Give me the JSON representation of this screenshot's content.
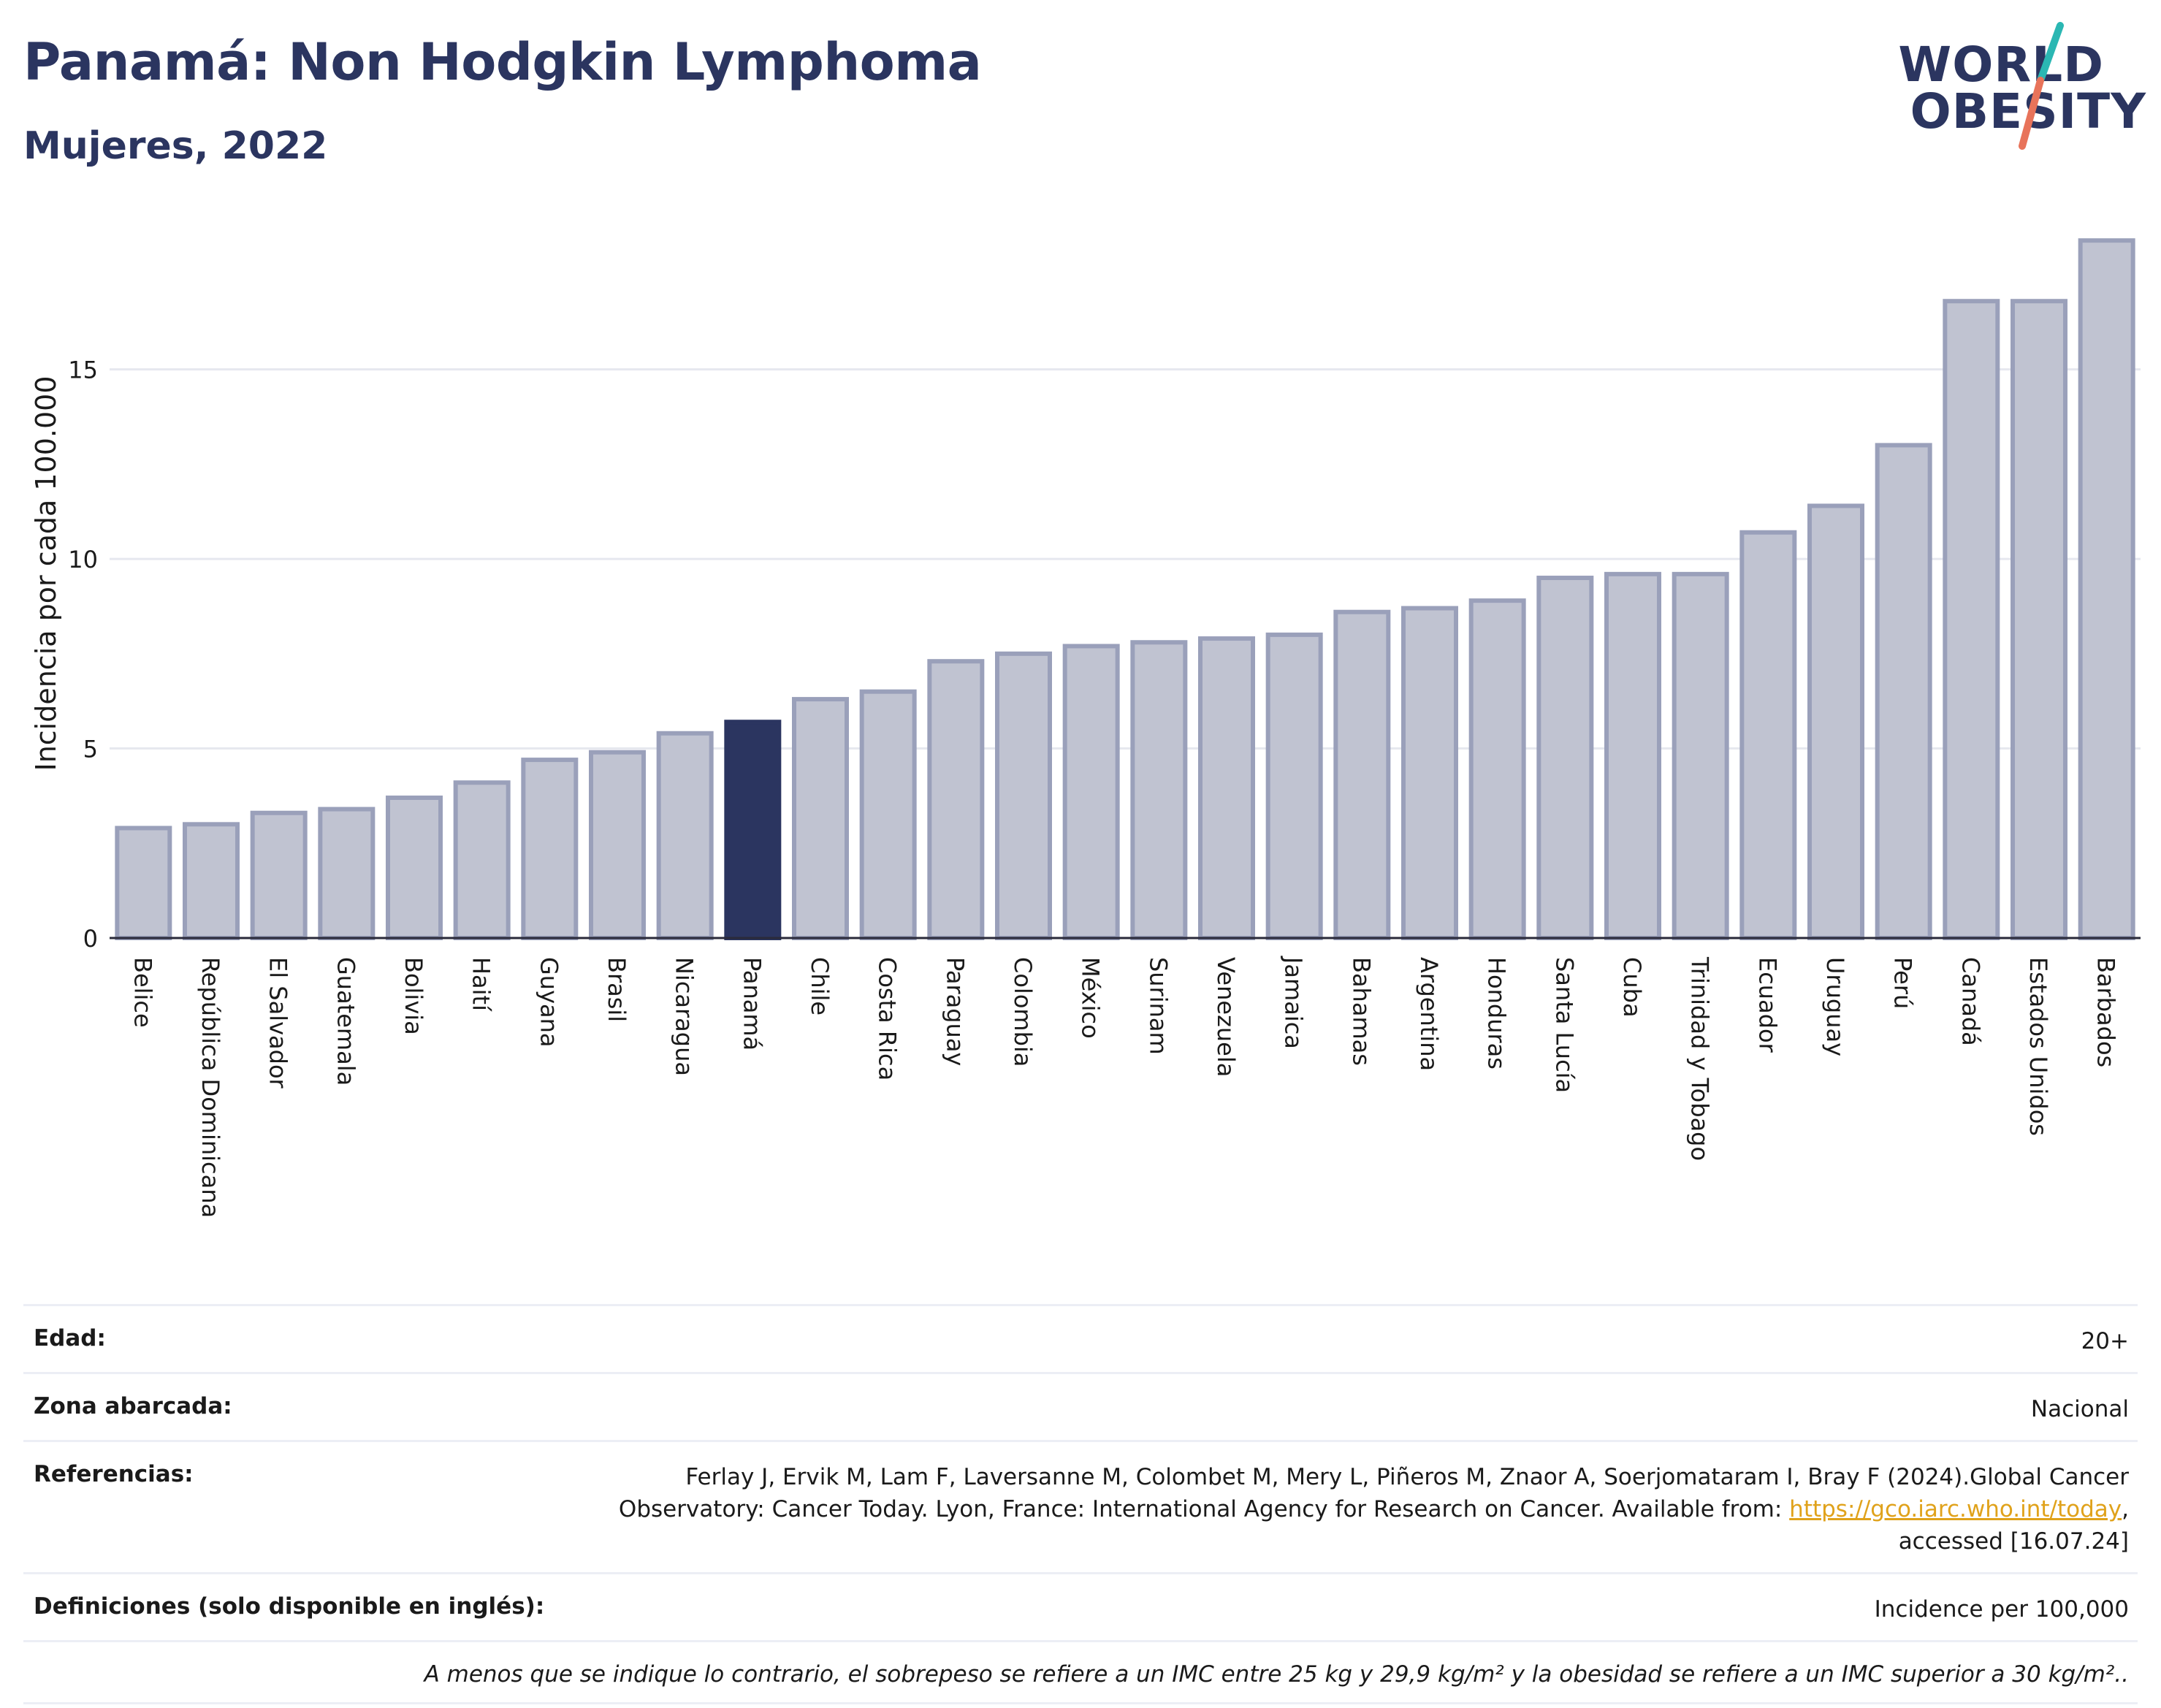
{
  "header": {
    "title": "Panamá: Non Hodgkin Lymphoma",
    "subtitle": "Mujeres, 2022"
  },
  "logo": {
    "line1": "WORLD",
    "line2": "OBESITY"
  },
  "colors": {
    "highlight": "#2b3560",
    "bar_fill": "#c0c3d1",
    "bar_stroke": "#9aa0ba",
    "grid": "#e6e8ef",
    "logo_teal": "#2bb7b3",
    "logo_red": "#e8735a"
  },
  "chart_data": {
    "type": "bar",
    "ylabel": "Incidencia por cada 100.000",
    "xlabel": "",
    "ylim": [
      0,
      18.5
    ],
    "yticks": [
      0,
      5,
      10,
      15
    ],
    "grid": true,
    "highlight": "Panamá",
    "categories": [
      "Belice",
      "República Dominicana",
      "El Salvador",
      "Guatemala",
      "Bolivia",
      "Haití",
      "Guyana",
      "Brasil",
      "Nicaragua",
      "Panamá",
      "Chile",
      "Costa Rica",
      "Paraguay",
      "Colombia",
      "México",
      "Surinam",
      "Venezuela",
      "Jamaica",
      "Bahamas",
      "Argentina",
      "Honduras",
      "Santa Lucía",
      "Cuba",
      "Trinidad y Tobago",
      "Ecuador",
      "Uruguay",
      "Perú",
      "Canadá",
      "Estados Unidos",
      "Barbados"
    ],
    "values": [
      2.9,
      3.0,
      3.3,
      3.4,
      3.7,
      4.1,
      4.7,
      4.9,
      5.4,
      5.7,
      6.3,
      6.5,
      7.3,
      7.5,
      7.7,
      7.8,
      7.9,
      8.0,
      8.6,
      8.7,
      8.9,
      9.5,
      9.6,
      9.6,
      10.7,
      11.4,
      13.0,
      16.8,
      16.8,
      18.4
    ]
  },
  "info": {
    "age_label": "Edad:",
    "age_value": "20+",
    "area_label": "Zona abarcada:",
    "area_value": "Nacional",
    "refs_label": "Referencias:",
    "refs_text_1": "Ferlay J, Ervik M, Lam F, Laversanne M, Colombet M, Mery L, Piñeros M, Znaor A, Soerjomataram I, Bray F (2024).Global Cancer",
    "refs_text_2": "Observatory: Cancer Today. Lyon, France: International Agency for Research on Cancer. Available from: ",
    "refs_link": "https://gco.iarc.who.int/today",
    "refs_text_3": ",",
    "refs_text_4": "accessed [16.07.24]",
    "defs_label": "Definiciones (solo disponible en inglés):",
    "defs_value": "Incidence per 100,000",
    "note": "A menos que se indique lo contrario, el sobrepeso se refiere a un IMC entre 25 kg y 29,9 kg/m² y la obesidad se refiere a un IMC superior a 30 kg/m².."
  }
}
